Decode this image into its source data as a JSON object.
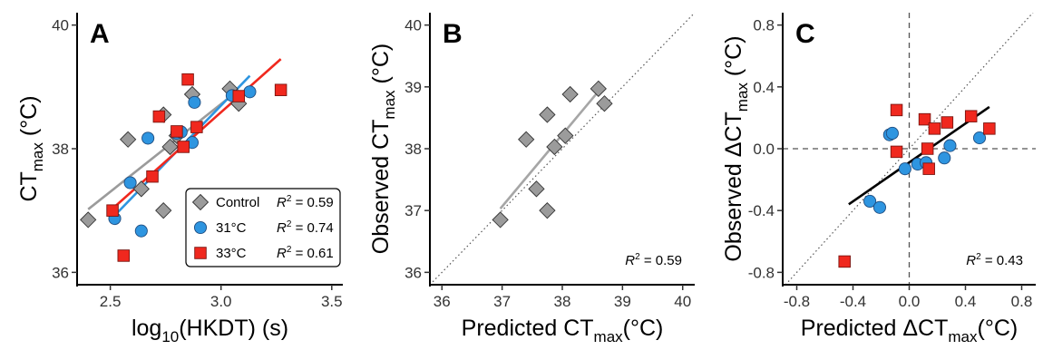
{
  "chart_data": [
    {
      "type": "scatter",
      "panel_label": "A",
      "xlabel_main": "log",
      "xlabel_sub": "10",
      "xlabel_rest": "(HKDT) (s)",
      "ylabel_main": "CT",
      "ylabel_sub": "max",
      "ylabel_rest": " (°C)",
      "xlim": [
        2.35,
        3.55
      ],
      "ylim": [
        35.8,
        40.2
      ],
      "xticks": [
        2.5,
        3.0,
        3.5
      ],
      "xtick_labels": [
        "2.5",
        "3.0",
        "3.5"
      ],
      "yticks": [
        36,
        38,
        40
      ],
      "ytick_labels": [
        "36",
        "38",
        "40"
      ],
      "legend_position": "bottom-right",
      "series": [
        {
          "name": "Control",
          "r2_label": "R",
          "r2_value": " = 0.59",
          "marker": "diamond",
          "color": "#9b9b9b",
          "line_color": "#9b9b9b",
          "points": [
            [
              2.4,
              36.85
            ],
            [
              2.58,
              38.15
            ],
            [
              2.64,
              37.35
            ],
            [
              2.74,
              38.55
            ],
            [
              2.74,
              37.0
            ],
            [
              2.77,
              38.03
            ],
            [
              2.8,
              38.21
            ],
            [
              2.87,
              38.88
            ],
            [
              3.04,
              38.97
            ],
            [
              3.08,
              38.73
            ]
          ],
          "fit": [
            [
              2.4,
              37.02
            ],
            [
              3.08,
              38.95
            ]
          ]
        },
        {
          "name": "31°C",
          "r2_label": "R",
          "r2_value": " = 0.74",
          "marker": "circle",
          "color": "#2e95e0",
          "line_color": "#2e95e0",
          "points": [
            [
              2.52,
              36.87
            ],
            [
              2.59,
              37.45
            ],
            [
              2.64,
              36.67
            ],
            [
              2.67,
              38.17
            ],
            [
              2.8,
              38.25
            ],
            [
              2.82,
              38.27
            ],
            [
              2.87,
              38.1
            ],
            [
              2.88,
              38.75
            ],
            [
              3.05,
              38.86
            ],
            [
              3.13,
              38.92
            ]
          ],
          "fit": [
            [
              2.52,
              36.92
            ],
            [
              3.13,
              39.18
            ]
          ]
        },
        {
          "name": "33°C",
          "r2_label": "R",
          "r2_value": " = 0.61",
          "marker": "square",
          "color": "#f0281e",
          "line_color": "#f0281e",
          "points": [
            [
              2.51,
              37.0
            ],
            [
              2.56,
              36.27
            ],
            [
              2.69,
              37.55
            ],
            [
              2.72,
              38.52
            ],
            [
              2.8,
              38.28
            ],
            [
              2.83,
              38.03
            ],
            [
              2.85,
              39.12
            ],
            [
              2.89,
              38.35
            ],
            [
              3.08,
              38.85
            ],
            [
              3.27,
              38.95
            ]
          ],
          "fit": [
            [
              2.51,
              37.03
            ],
            [
              3.27,
              39.45
            ]
          ]
        }
      ]
    },
    {
      "type": "scatter",
      "panel_label": "B",
      "xlabel_main": "Predicted CT",
      "xlabel_sub": "max",
      "xlabel_rest": "(°C)",
      "ylabel_main": "Observed CT",
      "ylabel_sub": "max",
      "ylabel_rest": " (°C)",
      "xlim": [
        35.8,
        40.2
      ],
      "ylim": [
        35.8,
        40.2
      ],
      "xticks": [
        36,
        37,
        38,
        39,
        40
      ],
      "xtick_labels": [
        "36",
        "37",
        "38",
        "39",
        "40"
      ],
      "yticks": [
        36,
        37,
        38,
        39,
        40
      ],
      "ytick_labels": [
        "36",
        "37",
        "38",
        "39",
        "40"
      ],
      "annotation_r2_label": "R",
      "annotation_r2_value": " = 0.59",
      "series": [
        {
          "marker": "diamond",
          "color": "#9b9b9b",
          "line_color": "#a6a6a6",
          "points": [
            [
              36.97,
              36.85
            ],
            [
              37.4,
              38.15
            ],
            [
              37.57,
              37.35
            ],
            [
              37.75,
              38.55
            ],
            [
              37.75,
              37.0
            ],
            [
              37.87,
              38.03
            ],
            [
              38.05,
              38.21
            ],
            [
              38.13,
              38.88
            ],
            [
              38.6,
              38.97
            ],
            [
              38.7,
              38.73
            ]
          ],
          "fit": [
            [
              36.97,
              37.03
            ],
            [
              38.62,
              38.95
            ]
          ]
        }
      ],
      "reference_line": "1:1"
    },
    {
      "type": "scatter",
      "panel_label": "C",
      "xlabel_main": "Predicted ΔCT",
      "xlabel_sub": "max",
      "xlabel_rest": "(°C)",
      "ylabel_main": "Observed ΔCT",
      "ylabel_sub": "max",
      "ylabel_rest": " (°C)",
      "xlim": [
        -0.9,
        0.9
      ],
      "ylim": [
        -0.88,
        0.88
      ],
      "xticks": [
        -0.8,
        -0.4,
        0.0,
        0.4,
        0.8
      ],
      "xtick_labels": [
        "-0.8",
        "-0.4",
        "0.0",
        "0.4",
        "0.8"
      ],
      "yticks": [
        -0.8,
        -0.4,
        0.0,
        0.4,
        0.8
      ],
      "ytick_labels": [
        "-0.8",
        "-0.4",
        "0.0",
        "0.4",
        "0.8"
      ],
      "annotation_r2_label": "R",
      "annotation_r2_value": " = 0.43",
      "series": [
        {
          "marker": "circle",
          "color": "#2e95e0",
          "points": [
            [
              -0.28,
              -0.34
            ],
            [
              -0.21,
              -0.38
            ],
            [
              -0.14,
              0.09
            ],
            [
              -0.12,
              0.1
            ],
            [
              -0.03,
              -0.13
            ],
            [
              0.06,
              -0.1
            ],
            [
              0.12,
              -0.09
            ],
            [
              0.25,
              -0.06
            ],
            [
              0.29,
              0.02
            ],
            [
              0.5,
              0.07
            ]
          ]
        },
        {
          "marker": "square",
          "color": "#f0281e",
          "points": [
            [
              -0.46,
              -0.73
            ],
            [
              -0.09,
              0.25
            ],
            [
              -0.09,
              -0.02
            ],
            [
              0.11,
              0.19
            ],
            [
              0.13,
              0.0
            ],
            [
              0.14,
              -0.13
            ],
            [
              0.18,
              0.13
            ],
            [
              0.27,
              0.17
            ],
            [
              0.44,
              0.21
            ],
            [
              0.57,
              0.13
            ]
          ]
        }
      ],
      "fit": [
        [
          -0.43,
          -0.36
        ],
        [
          0.57,
          0.27
        ]
      ],
      "fit_color": "#000000",
      "reference_line": "1:1",
      "zero_lines": true
    }
  ]
}
